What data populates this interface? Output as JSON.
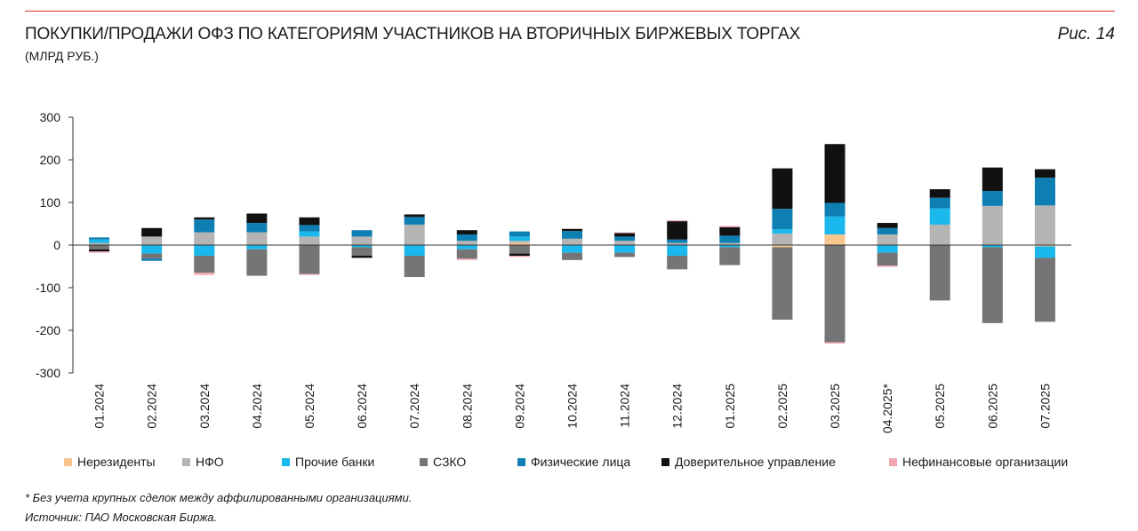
{
  "header": {
    "title": "ПОКУПКИ/ПРОДАЖИ ОФЗ ПО КАТЕГОРИЯМ УЧАСТНИКОВ НА ВТОРИЧНЫХ БИРЖЕВЫХ ТОРГАХ",
    "subtitle": "(МЛРД РУБ.)",
    "figure_label": "Рис. 14"
  },
  "footer": {
    "footnote": "* Без учета крупных сделок между аффилированными организациями.",
    "source": "Источник: ПАО Московская Биржа."
  },
  "chart_data": {
    "type": "bar",
    "stacked": true,
    "ylim": [
      -300,
      300
    ],
    "yticks": [
      300,
      200,
      100,
      0,
      -100,
      -200,
      -300
    ],
    "grid": false,
    "legend_position": "bottom",
    "categories": [
      "01.2024",
      "02.2024",
      "03.2024",
      "04.2024",
      "05.2024",
      "06.2024",
      "07.2024",
      "08.2024",
      "09.2024",
      "10.2024",
      "11.2024",
      "12.2024",
      "01.2025",
      "02.2025",
      "03.2025",
      "04.2025*",
      "05.2025",
      "06.2025",
      "07.2025"
    ],
    "series": [
      {
        "name": "Нерезиденты",
        "color": "#f6c68c",
        "values": [
          0,
          0,
          0,
          0,
          0,
          0,
          0,
          0,
          5,
          0,
          0,
          0,
          0,
          -5,
          25,
          0,
          0,
          0,
          -3
        ]
      },
      {
        "name": "НФО",
        "color": "#b4b4b4",
        "values": [
          5,
          20,
          30,
          30,
          20,
          20,
          48,
          10,
          5,
          15,
          10,
          5,
          5,
          27,
          0,
          25,
          48,
          92,
          93
        ]
      },
      {
        "name": "Прочие банки",
        "color": "#1ab8ec",
        "values": [
          8,
          -20,
          -25,
          -10,
          12,
          -5,
          -25,
          -10,
          10,
          -18,
          -18,
          -25,
          -5,
          10,
          42,
          -18,
          38,
          -5,
          -27
        ]
      },
      {
        "name": "СЗКО",
        "color": "#757575",
        "values": [
          -10,
          -12,
          -40,
          -62,
          -68,
          -20,
          -50,
          -22,
          -20,
          -17,
          -10,
          -32,
          -42,
          -170,
          -228,
          -30,
          -130,
          -178,
          -150
        ]
      },
      {
        "name": "Физические лица",
        "color": "#0e7fb3",
        "values": [
          5,
          -5,
          30,
          22,
          15,
          15,
          18,
          15,
          12,
          18,
          10,
          8,
          17,
          48,
          32,
          15,
          25,
          35,
          65
        ]
      },
      {
        "name": "Доверительное управление",
        "color": "#111111",
        "values": [
          -5,
          20,
          5,
          22,
          18,
          -5,
          6,
          10,
          -5,
          5,
          8,
          43,
          20,
          95,
          138,
          12,
          20,
          55,
          20
        ]
      },
      {
        "name": "Нефинансовые организации",
        "color": "#f2a7b0",
        "values": [
          -3,
          0,
          -5,
          0,
          -2,
          0,
          0,
          -3,
          -3,
          0,
          2,
          2,
          3,
          0,
          -3,
          -3,
          0,
          0,
          0
        ]
      }
    ]
  }
}
